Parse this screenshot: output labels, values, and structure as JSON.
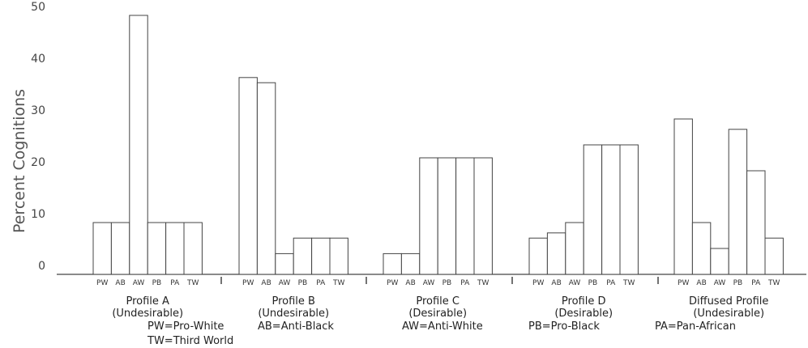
{
  "chart_data": {
    "type": "bar",
    "ylabel": "Percent Cognitions",
    "ylim": [
      0,
      50
    ],
    "yticks": [
      0,
      10,
      20,
      30,
      40,
      50
    ],
    "grid": false,
    "bar_color": "#ffffff",
    "edge_color": "#444444",
    "categories": [
      "PW",
      "AB",
      "AW",
      "PB",
      "PA",
      "TW"
    ],
    "groups": [
      {
        "name": "Profile A",
        "sub": "(Undesirable)",
        "values": [
          10,
          10,
          50,
          10,
          10,
          10
        ]
      },
      {
        "name": "Profile B",
        "sub": "(Undesirable)",
        "values": [
          38,
          37,
          4,
          7,
          7,
          7
        ]
      },
      {
        "name": "Profile C",
        "sub": "(Desirable)",
        "values": [
          4,
          4,
          22.5,
          22.5,
          22.5,
          22.5
        ]
      },
      {
        "name": "Profile D",
        "sub": "(Desirable)",
        "values": [
          7,
          8,
          10,
          25,
          25,
          25
        ]
      },
      {
        "name": "Diffused Profile",
        "sub": "(Undesirable)",
        "values": [
          30,
          10,
          5,
          28,
          20,
          7
        ]
      }
    ]
  },
  "legend": {
    "pw": "PW=Pro-White",
    "ab": "AB=Anti-Black",
    "aw": "AW=Anti-White",
    "pb": "PB=Pro-Black",
    "pa": "PA=Pan-African",
    "tw": "TW=Third World"
  }
}
